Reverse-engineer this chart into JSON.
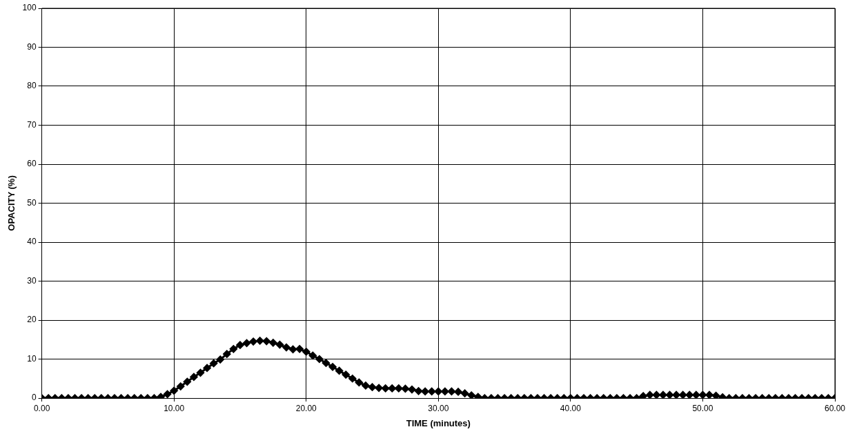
{
  "chart_data": {
    "type": "line",
    "xlabel": "TIME (minutes)",
    "ylabel": "OPACITY (%)",
    "x": [
      0,
      0.5,
      1,
      1.5,
      2,
      2.5,
      3,
      3.5,
      4,
      4.5,
      5,
      5.5,
      6,
      6.5,
      7,
      7.5,
      8,
      8.5,
      9,
      9.5,
      10,
      10.5,
      11,
      11.5,
      12,
      12.5,
      13,
      13.5,
      14,
      14.5,
      15,
      15.5,
      16,
      16.5,
      17,
      17.5,
      18,
      18.5,
      19,
      19.5,
      20,
      20.5,
      21,
      21.5,
      22,
      22.5,
      23,
      23.5,
      24,
      24.5,
      25,
      25.5,
      26,
      26.5,
      27,
      27.5,
      28,
      28.5,
      29,
      29.5,
      30,
      30.5,
      31,
      31.5,
      32,
      32.5,
      33,
      33.5,
      34,
      34.5,
      35,
      35.5,
      36,
      36.5,
      37,
      37.5,
      38,
      38.5,
      39,
      39.5,
      40,
      40.5,
      41,
      41.5,
      42,
      42.5,
      43,
      43.5,
      44,
      44.5,
      45,
      45.5,
      46,
      46.5,
      47,
      47.5,
      48,
      48.5,
      49,
      49.5,
      50,
      50.5,
      51,
      51.5,
      52,
      52.5,
      53,
      53.5,
      54,
      54.5,
      55,
      55.5,
      56,
      56.5,
      57,
      57.5,
      58,
      58.5,
      59,
      59.5,
      60
    ],
    "series": [
      {
        "color": "#000000",
        "values": [
          0,
          0,
          0,
          0,
          0,
          0,
          0,
          0,
          0,
          0,
          0,
          0,
          0,
          0,
          0,
          0,
          0,
          0,
          0.3,
          1.0,
          1.9,
          3.0,
          4.2,
          5.4,
          6.5,
          7.7,
          8.9,
          9.9,
          11.3,
          12.6,
          13.6,
          14.1,
          14.5,
          14.7,
          14.6,
          14.2,
          13.7,
          13.0,
          12.5,
          12.6,
          11.9,
          10.9,
          10.0,
          9.0,
          8.0,
          7.0,
          6.0,
          5.0,
          4.0,
          3.2,
          2.8,
          2.6,
          2.5,
          2.5,
          2.5,
          2.4,
          2.2,
          1.8,
          1.7,
          1.7,
          1.7,
          1.7,
          1.7,
          1.6,
          1.2,
          0.7,
          0.3,
          0,
          0,
          0,
          0,
          0,
          0,
          0,
          0,
          0,
          0,
          0,
          0,
          0,
          0,
          0,
          0,
          0,
          0,
          0,
          0,
          0,
          0,
          0,
          0,
          0.5,
          0.8,
          0.8,
          0.8,
          0.8,
          0.8,
          0.8,
          0.8,
          0.8,
          0.8,
          0.8,
          0.6,
          0.2,
          0,
          0,
          0,
          0,
          0,
          0,
          0,
          0,
          0,
          0,
          0,
          0,
          0,
          0,
          0,
          0,
          0
        ]
      }
    ],
    "xlim": [
      0,
      60
    ],
    "xticks": [
      {
        "value": 0,
        "label": "0.00"
      },
      {
        "value": 10,
        "label": "10.00"
      },
      {
        "value": 20,
        "label": "20.00"
      },
      {
        "value": 30,
        "label": "30.00"
      },
      {
        "value": 40,
        "label": "40.00"
      },
      {
        "value": 50,
        "label": "50.00"
      },
      {
        "value": 60,
        "label": "60.00"
      }
    ],
    "ylim": [
      0,
      100
    ],
    "yticks": [
      0,
      10,
      20,
      30,
      40,
      50,
      60,
      70,
      80,
      90,
      100
    ],
    "grid": true,
    "legend": false,
    "marker": "diamond",
    "line_style": "solid"
  }
}
